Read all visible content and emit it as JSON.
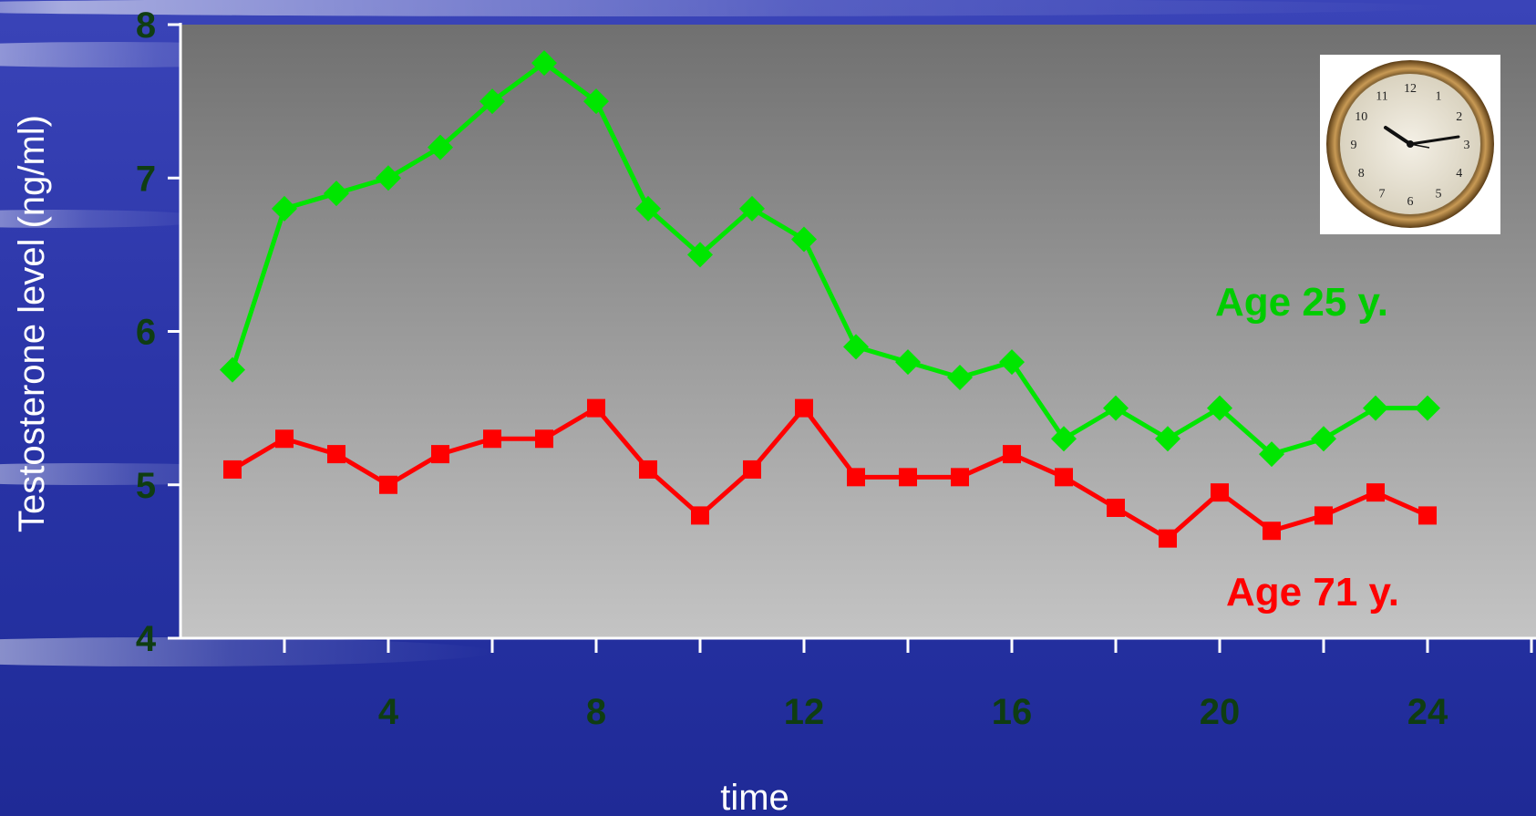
{
  "chart_data": {
    "type": "line",
    "xlabel": "time",
    "ylabel": "Testosterone level (ng/ml)",
    "ylim": [
      4,
      8
    ],
    "xlim": [
      0,
      25
    ],
    "yticks": [
      "4",
      "5",
      "6",
      "7",
      "8"
    ],
    "xticks": [
      "4",
      "8",
      "12",
      "16",
      "20",
      "24"
    ],
    "grid": false,
    "x": [
      1,
      2,
      3,
      4,
      5,
      6,
      7,
      8,
      9,
      10,
      11,
      12,
      13,
      14,
      15,
      16,
      17,
      18,
      19,
      20,
      21,
      22,
      23,
      24
    ],
    "series": [
      {
        "name": "Age 25 y.",
        "color": "#00e600",
        "marker": "diamond",
        "values": [
          5.75,
          6.8,
          6.9,
          7.0,
          7.2,
          7.5,
          7.75,
          7.5,
          6.8,
          6.5,
          6.8,
          6.6,
          5.9,
          5.8,
          5.7,
          5.8,
          5.3,
          5.5,
          5.3,
          5.5,
          5.2,
          5.3,
          5.5,
          5.5
        ]
      },
      {
        "name": "Age 71 y.",
        "color": "#ff0000",
        "marker": "square",
        "values": [
          5.1,
          5.3,
          5.2,
          5.0,
          5.2,
          5.3,
          5.3,
          5.5,
          5.1,
          4.8,
          5.1,
          5.5,
          5.05,
          5.05,
          5.05,
          5.2,
          5.05,
          4.85,
          4.65,
          4.95,
          4.7,
          4.8,
          4.95,
          4.8
        ]
      }
    ],
    "legend": "inline labels (right side)",
    "plot_background": "gray gradient",
    "decoration": "clock-icon"
  }
}
